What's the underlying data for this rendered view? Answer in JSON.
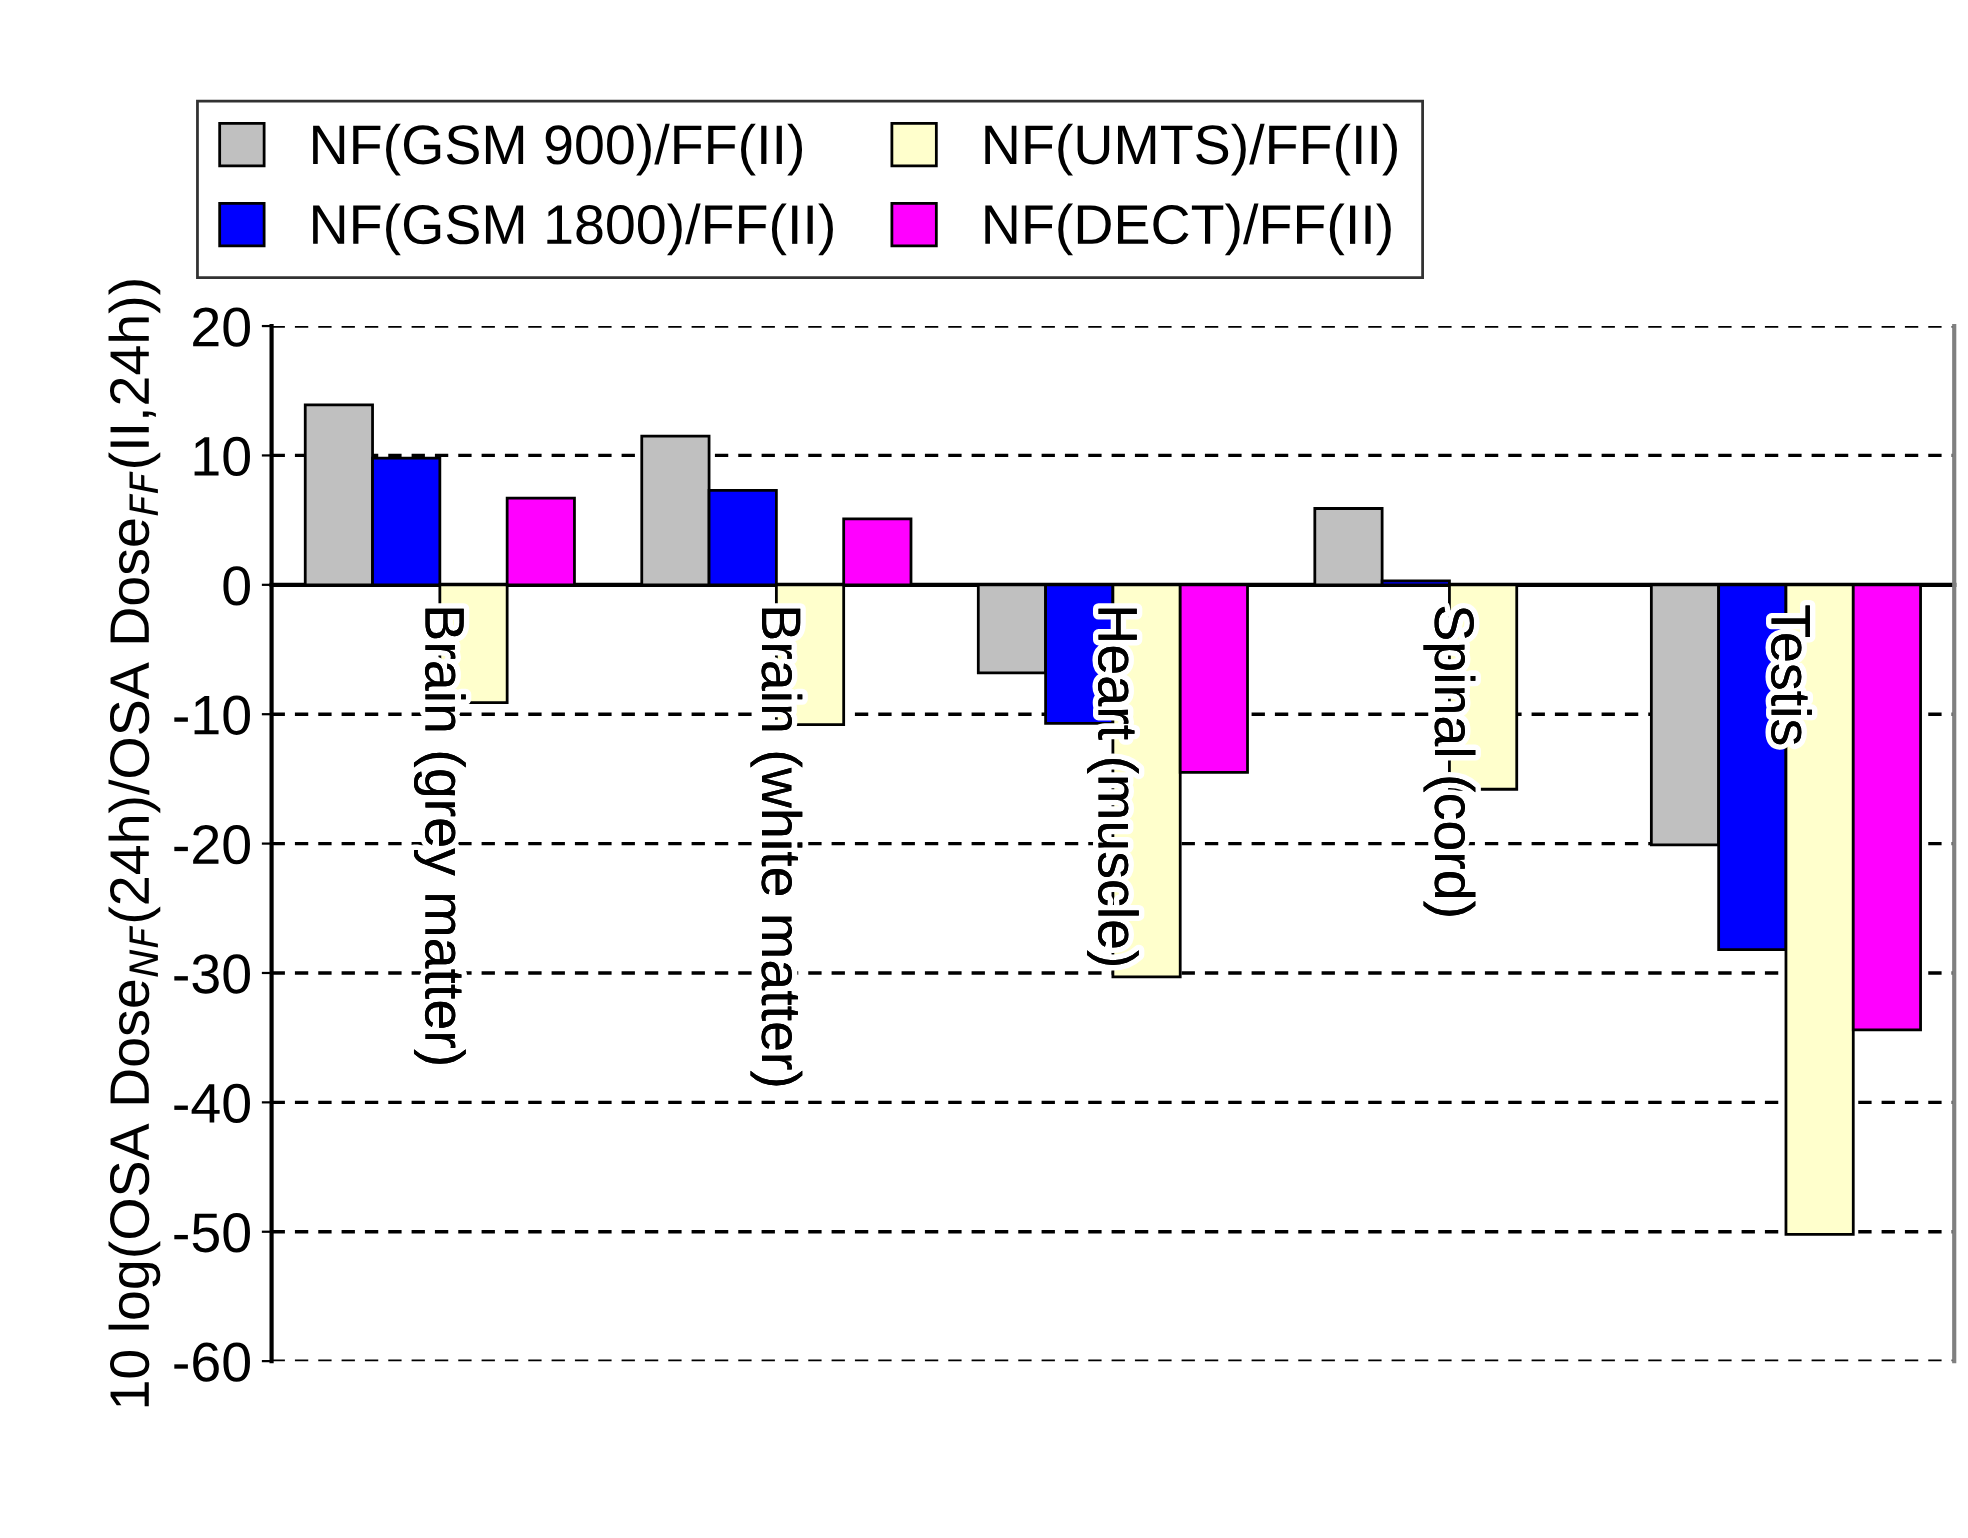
{
  "chart_data": {
    "type": "bar",
    "ylabel": "10 log(OSA Dose$_{NF}$(24h)/OSA Dose$_{FF}$(II,24h))",
    "categories": [
      "Brain (grey matter)",
      "Brain (white matter)",
      "Heart (muscle)",
      "Spinal (cord)",
      "Testis"
    ],
    "series": [
      {
        "name": "NF(GSM 900)/FF(II)",
        "color": "#c0c0c0",
        "values": [
          13.9,
          11.5,
          -6.8,
          5.9,
          -20.1
        ]
      },
      {
        "name": "NF(GSM 1800)/FF(II)",
        "color": "#0000ff",
        "values": [
          9.8,
          7.3,
          -10.7,
          0.3,
          -28.2
        ]
      },
      {
        "name": "NF(UMTS)/FF(II)",
        "color": "#ffffcc",
        "values": [
          -9.1,
          -10.8,
          -30.3,
          -15.8,
          -50.2
        ]
      },
      {
        "name": "NF(DECT)/FF(II)",
        "color": "#ff00ff",
        "values": [
          6.7,
          5.1,
          -14.5,
          null,
          -34.4
        ]
      }
    ],
    "ylim": [
      -60,
      20
    ],
    "yticks": [
      -60,
      -50,
      -40,
      -30,
      -20,
      -10,
      0,
      10,
      20
    ],
    "grid": "y",
    "legend": "top"
  }
}
